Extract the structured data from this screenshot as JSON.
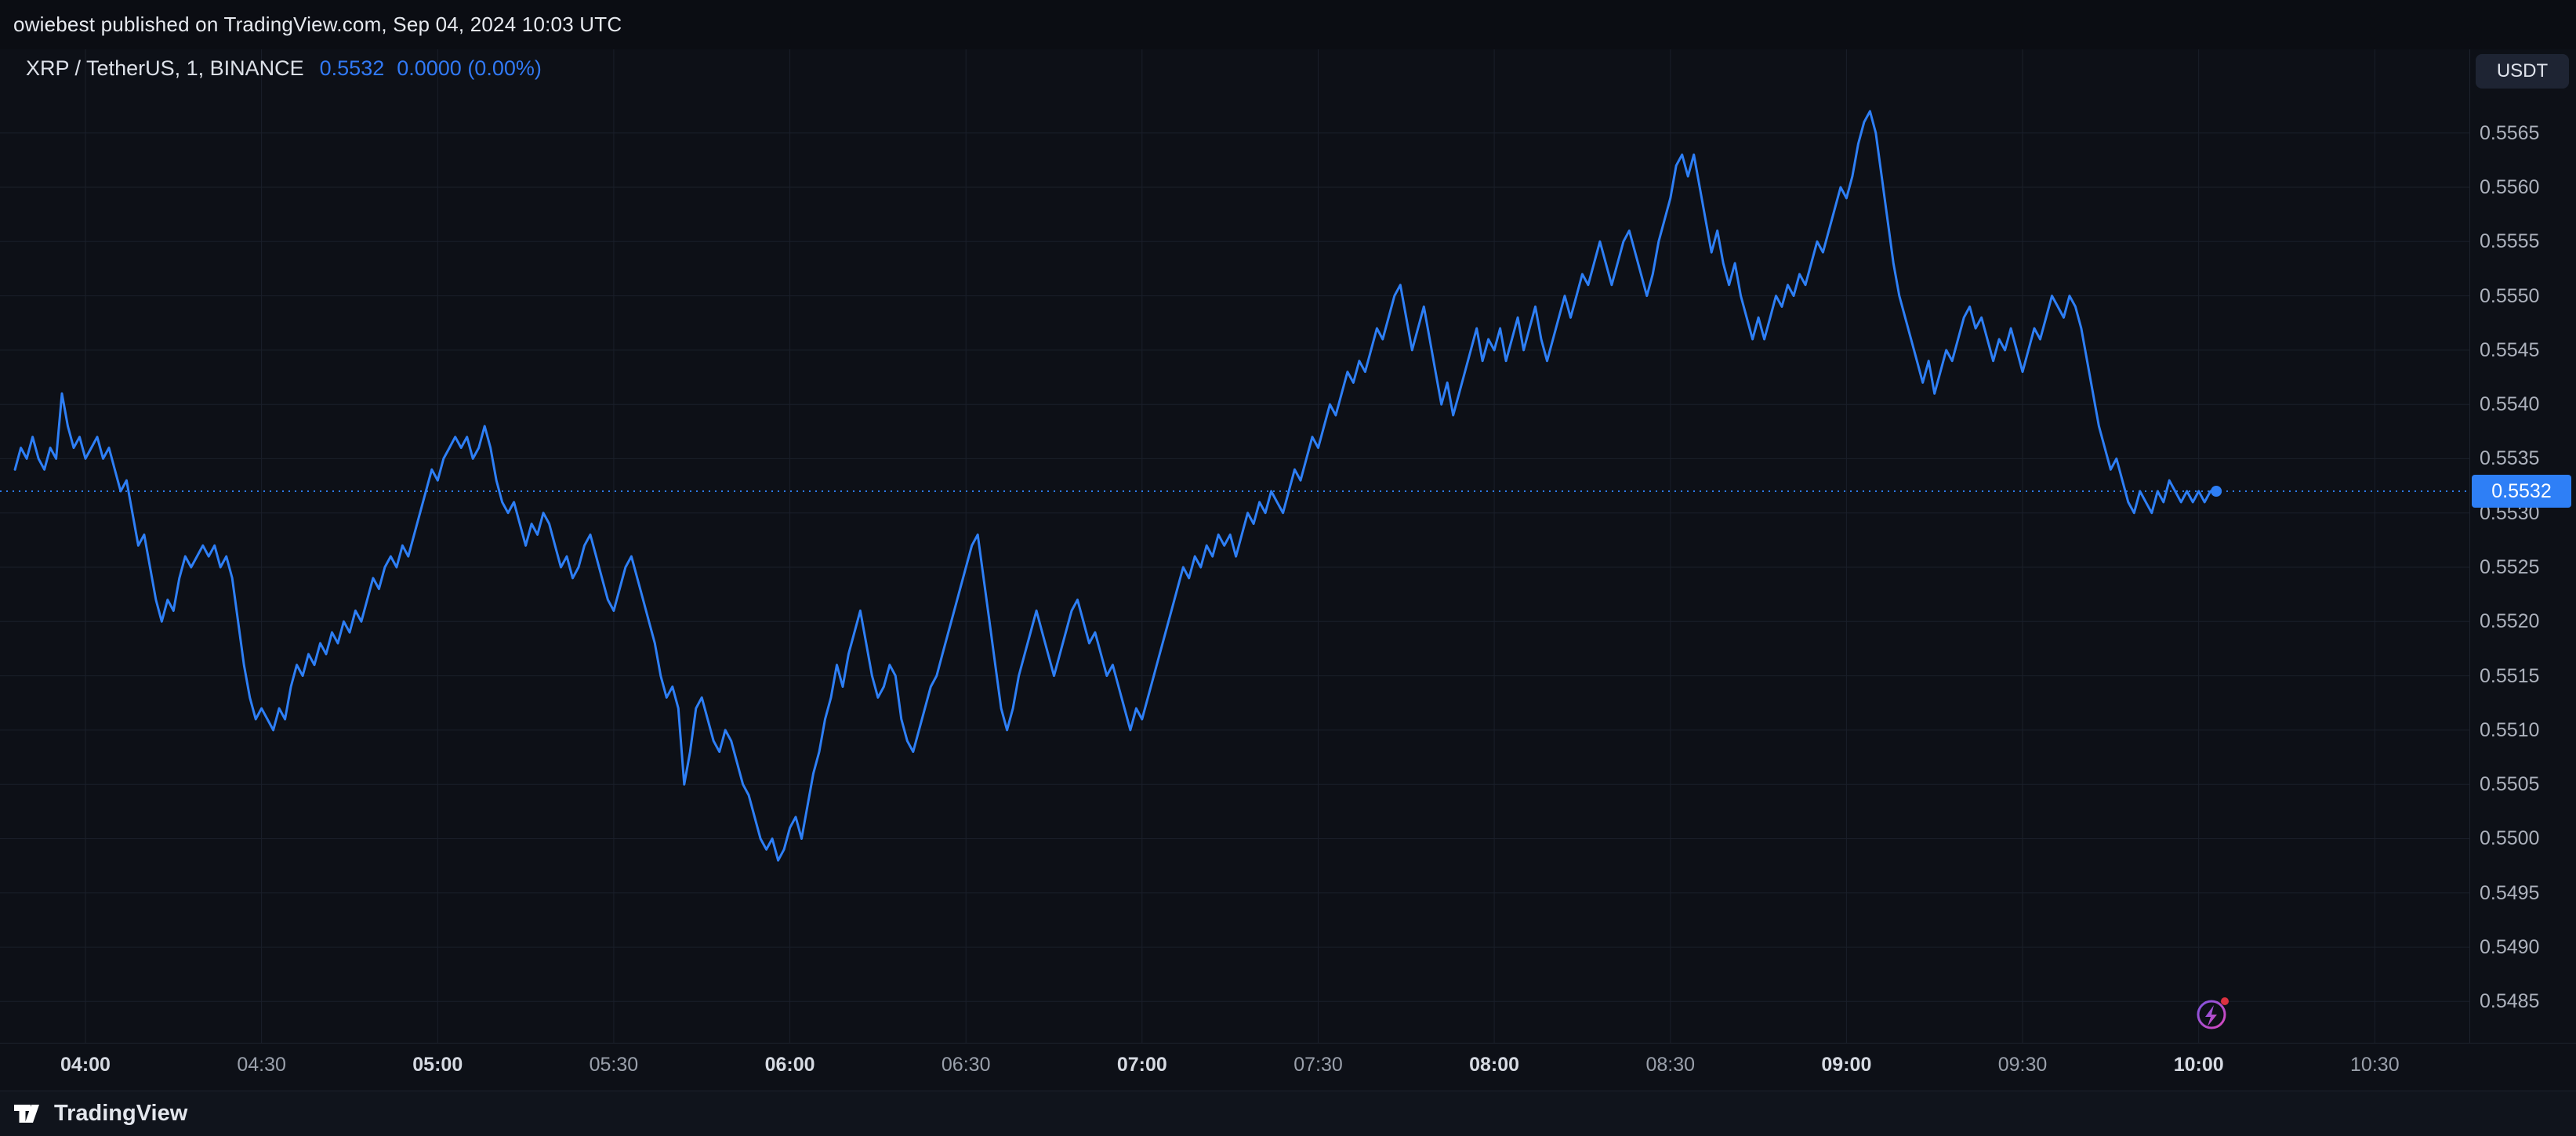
{
  "publish_bar": {
    "text": "owiebest published on TradingView.com, Sep 04, 2024 10:03 UTC"
  },
  "legend": {
    "symbol_title": "XRP / TetherUS, 1, BINANCE",
    "last_price": "0.5532",
    "change": "0.0000 (0.00%)"
  },
  "axis": {
    "currency_button": "USDT",
    "last_price_label": "0.5532"
  },
  "footer": {
    "brand": "TradingView"
  },
  "colors": {
    "background": "#0d1017",
    "header_background": "#0b0d13",
    "footer_background": "#10141c",
    "grid": "#1a1f2a",
    "line": "#2e7ff6",
    "axis_text": "#adb2bd",
    "badge_bg": "#2e7ff6",
    "badge_text": "#ffffff",
    "separator": "#1d222d",
    "alert_dot": "#f23645",
    "boost_purple": "#8b5cf6",
    "boost_pink": "#f04fd0"
  },
  "chart_data": {
    "type": "line",
    "title": "XRP / TetherUS, 1, BINANCE",
    "symbol": "XRP / TetherUS",
    "exchange": "BINANCE",
    "interval_minutes": 1,
    "last_price": 0.5532,
    "grid": true,
    "x_axis": {
      "labels": [
        "04:00",
        "04:30",
        "05:00",
        "05:30",
        "06:00",
        "06:30",
        "07:00",
        "07:30",
        "08:00",
        "08:30",
        "09:00",
        "09:30",
        "10:00",
        "10:30"
      ],
      "tick_interval_minutes": 30
    },
    "y_axis": {
      "min": 0.54812,
      "max": 0.55727,
      "tick_start": 0.5485,
      "tick_step": 0.0005,
      "tick_count": 17
    },
    "series": {
      "name": "XRP/USDT close",
      "start_minute": -12,
      "step_minutes": 1,
      "prices": [
        0.5534,
        0.5536,
        0.5535,
        0.5537,
        0.5535,
        0.5534,
        0.5536,
        0.5535,
        0.5541,
        0.5538,
        0.5536,
        0.5537,
        0.5535,
        0.5536,
        0.5537,
        0.5535,
        0.5536,
        0.5534,
        0.5532,
        0.5533,
        0.553,
        0.5527,
        0.5528,
        0.5525,
        0.5522,
        0.552,
        0.5522,
        0.5521,
        0.5524,
        0.5526,
        0.5525,
        0.5526,
        0.5527,
        0.5526,
        0.5527,
        0.5525,
        0.5526,
        0.5524,
        0.552,
        0.5516,
        0.5513,
        0.5511,
        0.5512,
        0.5511,
        0.551,
        0.5512,
        0.5511,
        0.5514,
        0.5516,
        0.5515,
        0.5517,
        0.5516,
        0.5518,
        0.5517,
        0.5519,
        0.5518,
        0.552,
        0.5519,
        0.5521,
        0.552,
        0.5522,
        0.5524,
        0.5523,
        0.5525,
        0.5526,
        0.5525,
        0.5527,
        0.5526,
        0.5528,
        0.553,
        0.5532,
        0.5534,
        0.5533,
        0.5535,
        0.5536,
        0.5537,
        0.5536,
        0.5537,
        0.5535,
        0.5536,
        0.5538,
        0.5536,
        0.5533,
        0.5531,
        0.553,
        0.5531,
        0.5529,
        0.5527,
        0.5529,
        0.5528,
        0.553,
        0.5529,
        0.5527,
        0.5525,
        0.5526,
        0.5524,
        0.5525,
        0.5527,
        0.5528,
        0.5526,
        0.5524,
        0.5522,
        0.5521,
        0.5523,
        0.5525,
        0.5526,
        0.5524,
        0.5522,
        0.552,
        0.5518,
        0.5515,
        0.5513,
        0.5514,
        0.5512,
        0.5505,
        0.5508,
        0.5512,
        0.5513,
        0.5511,
        0.5509,
        0.5508,
        0.551,
        0.5509,
        0.5507,
        0.5505,
        0.5504,
        0.5502,
        0.55,
        0.5499,
        0.55,
        0.5498,
        0.5499,
        0.5501,
        0.5502,
        0.55,
        0.5503,
        0.5506,
        0.5508,
        0.5511,
        0.5513,
        0.5516,
        0.5514,
        0.5517,
        0.5519,
        0.5521,
        0.5518,
        0.5515,
        0.5513,
        0.5514,
        0.5516,
        0.5515,
        0.5511,
        0.5509,
        0.5508,
        0.551,
        0.5512,
        0.5514,
        0.5515,
        0.5517,
        0.5519,
        0.5521,
        0.5523,
        0.5525,
        0.5527,
        0.5528,
        0.5524,
        0.552,
        0.5516,
        0.5512,
        0.551,
        0.5512,
        0.5515,
        0.5517,
        0.5519,
        0.5521,
        0.5519,
        0.5517,
        0.5515,
        0.5517,
        0.5519,
        0.5521,
        0.5522,
        0.552,
        0.5518,
        0.5519,
        0.5517,
        0.5515,
        0.5516,
        0.5514,
        0.5512,
        0.551,
        0.5512,
        0.5511,
        0.5513,
        0.5515,
        0.5517,
        0.5519,
        0.5521,
        0.5523,
        0.5525,
        0.5524,
        0.5526,
        0.5525,
        0.5527,
        0.5526,
        0.5528,
        0.5527,
        0.5528,
        0.5526,
        0.5528,
        0.553,
        0.5529,
        0.5531,
        0.553,
        0.5532,
        0.5531,
        0.553,
        0.5532,
        0.5534,
        0.5533,
        0.5535,
        0.5537,
        0.5536,
        0.5538,
        0.554,
        0.5539,
        0.5541,
        0.5543,
        0.5542,
        0.5544,
        0.5543,
        0.5545,
        0.5547,
        0.5546,
        0.5548,
        0.555,
        0.5551,
        0.5548,
        0.5545,
        0.5547,
        0.5549,
        0.5546,
        0.5543,
        0.554,
        0.5542,
        0.5539,
        0.5541,
        0.5543,
        0.5545,
        0.5547,
        0.5544,
        0.5546,
        0.5545,
        0.5547,
        0.5544,
        0.5546,
        0.5548,
        0.5545,
        0.5547,
        0.5549,
        0.5546,
        0.5544,
        0.5546,
        0.5548,
        0.555,
        0.5548,
        0.555,
        0.5552,
        0.5551,
        0.5553,
        0.5555,
        0.5553,
        0.5551,
        0.5553,
        0.5555,
        0.5556,
        0.5554,
        0.5552,
        0.555,
        0.5552,
        0.5555,
        0.5557,
        0.5559,
        0.5562,
        0.5563,
        0.5561,
        0.5563,
        0.556,
        0.5557,
        0.5554,
        0.5556,
        0.5553,
        0.5551,
        0.5553,
        0.555,
        0.5548,
        0.5546,
        0.5548,
        0.5546,
        0.5548,
        0.555,
        0.5549,
        0.5551,
        0.555,
        0.5552,
        0.5551,
        0.5553,
        0.5555,
        0.5554,
        0.5556,
        0.5558,
        0.556,
        0.5559,
        0.5561,
        0.5564,
        0.5566,
        0.5567,
        0.5565,
        0.5561,
        0.5557,
        0.5553,
        0.555,
        0.5548,
        0.5546,
        0.5544,
        0.5542,
        0.5544,
        0.5541,
        0.5543,
        0.5545,
        0.5544,
        0.5546,
        0.5548,
        0.5549,
        0.5547,
        0.5548,
        0.5546,
        0.5544,
        0.5546,
        0.5545,
        0.5547,
        0.5545,
        0.5543,
        0.5545,
        0.5547,
        0.5546,
        0.5548,
        0.555,
        0.5549,
        0.5548,
        0.555,
        0.5549,
        0.5547,
        0.5544,
        0.5541,
        0.5538,
        0.5536,
        0.5534,
        0.5535,
        0.5533,
        0.5531,
        0.553,
        0.5532,
        0.5531,
        0.553,
        0.5532,
        0.5531,
        0.5533,
        0.5532,
        0.5531,
        0.5532,
        0.5531,
        0.5532,
        0.5531,
        0.5532,
        0.5532
      ]
    }
  }
}
